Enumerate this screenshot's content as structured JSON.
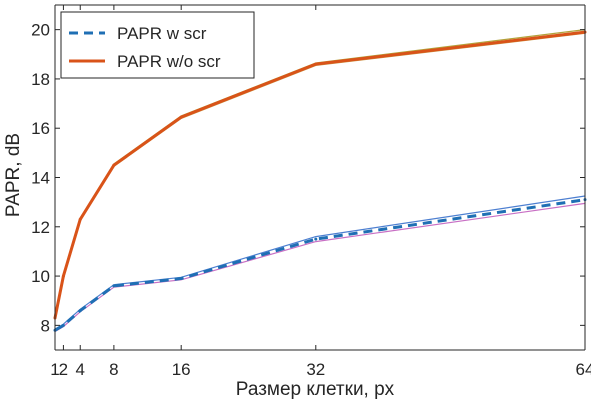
{
  "chart_data": {
    "type": "line",
    "xlabel": "Размер клетки, px",
    "ylabel": "PAPR, dB",
    "xlim": [
      1,
      64
    ],
    "ylim": [
      7,
      21
    ],
    "xticks": [
      1,
      2,
      4,
      8,
      16,
      32,
      64
    ],
    "xtick_labels": [
      "1",
      "2",
      "4",
      "8",
      "16",
      "32",
      "64"
    ],
    "yticks": [
      8,
      10,
      12,
      14,
      16,
      18,
      20
    ],
    "grid": false,
    "legend_position": "top-left",
    "series": [
      {
        "name": "PAPR w scr",
        "color": "#1f6fb4",
        "style": "dashed",
        "band_colors": [
          "#4d7fd1",
          "#c86fc4"
        ],
        "x": [
          1,
          2,
          4,
          8,
          16,
          32,
          64
        ],
        "y": [
          7.8,
          8.0,
          8.6,
          9.6,
          9.9,
          11.5,
          13.1
        ],
        "upper": [
          7.85,
          8.05,
          8.65,
          9.65,
          9.95,
          11.6,
          13.25
        ],
        "lower": [
          7.75,
          7.95,
          8.55,
          9.55,
          9.85,
          11.4,
          12.95
        ]
      },
      {
        "name": "PAPR w/o scr",
        "color": "#d95319",
        "style": "solid",
        "band_colors": [
          "#b2a23a",
          "#c8a050"
        ],
        "x": [
          1,
          2,
          4,
          8,
          16,
          32,
          64
        ],
        "y": [
          8.3,
          10.0,
          12.3,
          14.5,
          16.45,
          18.6,
          19.9
        ],
        "upper": [
          8.35,
          10.05,
          12.35,
          14.55,
          16.5,
          18.65,
          20.0
        ],
        "lower": [
          8.25,
          9.95,
          12.25,
          14.45,
          16.4,
          18.55,
          19.85
        ]
      }
    ]
  }
}
